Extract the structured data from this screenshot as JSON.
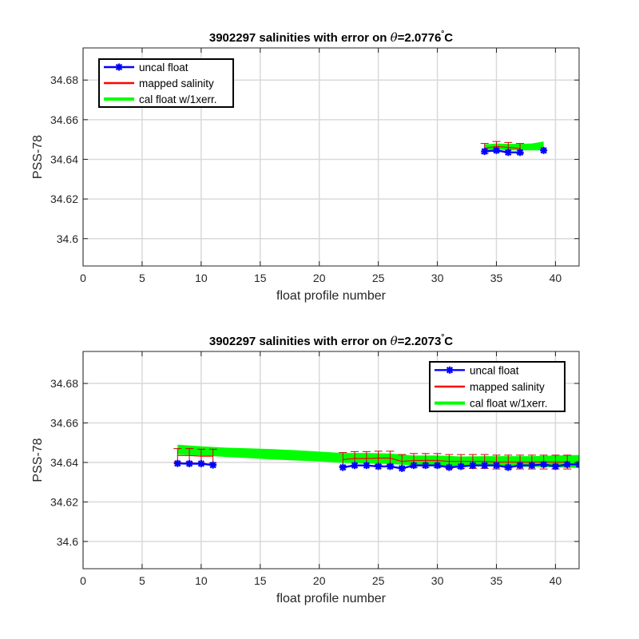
{
  "chart_data": [
    {
      "type": "line",
      "title_prefix": "3902297 salinities with error on ",
      "title_theta": "θ",
      "title_value": "=2.0776",
      "title_degree": "°",
      "title_unit": "C",
      "xlabel": "float profile number",
      "ylabel": "PSS-78",
      "xlim": [
        0,
        42
      ],
      "ylim": [
        34.5862,
        34.6962
      ],
      "xticks": [
        0,
        5,
        10,
        15,
        20,
        25,
        30,
        35,
        40
      ],
      "xtick_labels": [
        "0",
        "5",
        "10",
        "15",
        "20",
        "25",
        "30",
        "35",
        "40"
      ],
      "yticks": [
        34.6,
        34.62,
        34.64,
        34.66,
        34.68
      ],
      "ytick_labels": [
        "34.6",
        "34.62",
        "34.64",
        "34.66",
        "34.68"
      ],
      "grid": true,
      "legend_position": "top-left",
      "legend": [
        "uncal float",
        "mapped salinity",
        "cal float w/1xerr."
      ],
      "colors": {
        "uncal": "#0000ff",
        "mapped": "#ff0000",
        "cal": "#00ff00",
        "errbar": "#cc0000"
      },
      "series": [
        {
          "name": "uncal float",
          "x": [
            34,
            35,
            36,
            37
          ],
          "y": [
            34.644,
            34.6445,
            34.6435,
            34.6435
          ]
        },
        {
          "name": "uncal float",
          "x": [
            39
          ],
          "y": [
            34.6445
          ]
        },
        {
          "name": "mapped salinity",
          "x": [
            34,
            35,
            36,
            37
          ],
          "y": [
            34.6455,
            34.6465,
            34.646,
            34.6455
          ],
          "err": [
            0.0025,
            0.0025,
            0.0025,
            0.0025
          ]
        },
        {
          "name": "cal float w/1xerr.",
          "x": [
            34,
            35,
            36,
            37,
            38,
            39
          ],
          "upper": [
            34.6475,
            34.648,
            34.6478,
            34.6478,
            34.648,
            34.649
          ],
          "lower": [
            34.6445,
            34.645,
            34.6445,
            34.6445,
            34.6445,
            34.6445
          ]
        }
      ]
    },
    {
      "type": "line",
      "title_prefix": "3902297 salinities with error on ",
      "title_theta": "θ",
      "title_value": "=2.2073",
      "title_degree": "°",
      "title_unit": "C",
      "xlabel": "float profile number",
      "ylabel": "PSS-78",
      "xlim": [
        0,
        42
      ],
      "ylim": [
        34.5862,
        34.6962
      ],
      "xticks": [
        0,
        5,
        10,
        15,
        20,
        25,
        30,
        35,
        40
      ],
      "xtick_labels": [
        "0",
        "5",
        "10",
        "15",
        "20",
        "25",
        "30",
        "35",
        "40"
      ],
      "yticks": [
        34.6,
        34.62,
        34.64,
        34.66,
        34.68
      ],
      "ytick_labels": [
        "34.6",
        "34.62",
        "34.64",
        "34.66",
        "34.68"
      ],
      "grid": true,
      "legend_position": "top-right",
      "legend": [
        "uncal float",
        "mapped salinity",
        "cal float w/1xerr."
      ],
      "colors": {
        "uncal": "#0000ff",
        "mapped": "#ff0000",
        "cal": "#00ff00",
        "errbar": "#cc0000"
      },
      "series": [
        {
          "name": "uncal float",
          "x": [
            8,
            9,
            10,
            11
          ],
          "y": [
            34.6395,
            34.6394,
            34.6394,
            34.6387
          ]
        },
        {
          "name": "uncal float",
          "x": [
            22,
            23,
            24,
            25,
            26,
            27,
            28,
            29,
            30,
            31,
            32,
            33,
            34,
            35,
            36,
            37,
            38,
            39,
            40,
            41,
            42
          ],
          "y": [
            34.6375,
            34.6385,
            34.6385,
            34.638,
            34.638,
            34.637,
            34.6385,
            34.6385,
            34.6385,
            34.6375,
            34.638,
            34.6385,
            34.6385,
            34.6385,
            34.6375,
            34.6385,
            34.6385,
            34.639,
            34.638,
            34.639,
            34.639
          ]
        },
        {
          "name": "mapped salinity",
          "x": [
            8,
            9,
            10,
            11
          ],
          "y": [
            34.6435,
            34.6435,
            34.6432,
            34.6432
          ],
          "err": [
            0.0035,
            0.0035,
            0.0035,
            0.0035
          ]
        },
        {
          "name": "mapped salinity",
          "x": [
            22,
            23,
            24,
            25,
            26,
            27,
            28,
            29,
            30,
            31,
            32,
            33,
            34,
            35,
            36,
            37,
            38,
            39,
            40,
            41
          ],
          "y": [
            34.6415,
            34.642,
            34.642,
            34.6422,
            34.6422,
            34.6405,
            34.641,
            34.641,
            34.641,
            34.6405,
            34.6405,
            34.6405,
            34.6405,
            34.6402,
            34.6402,
            34.6402,
            34.6402,
            34.6402,
            34.6402,
            34.6402
          ],
          "err": [
            0.0035,
            0.0035,
            0.0035,
            0.0035,
            0.0035,
            0.0035,
            0.0035,
            0.0035,
            0.0035,
            0.0035,
            0.0035,
            0.0035,
            0.0035,
            0.0035,
            0.0035,
            0.0035,
            0.0035,
            0.0035,
            0.0035,
            0.0035
          ]
        },
        {
          "name": "cal float w/1xerr.",
          "x": [
            8,
            10,
            12,
            14,
            16,
            18,
            20,
            22,
            24,
            26,
            28,
            30,
            32,
            34,
            36,
            38,
            40,
            42
          ],
          "upper": [
            34.649,
            34.6482,
            34.6475,
            34.6472,
            34.6468,
            34.6462,
            34.6455,
            34.6448,
            34.6448,
            34.6445,
            34.6435,
            34.6435,
            34.643,
            34.6432,
            34.6432,
            34.6432,
            34.6435,
            34.6438
          ],
          "lower": [
            34.644,
            34.6435,
            34.6428,
            34.6422,
            34.6415,
            34.641,
            34.6405,
            34.6398,
            34.6395,
            34.6392,
            34.6385,
            34.6385,
            34.638,
            34.638,
            34.6378,
            34.6378,
            34.6375,
            34.6372
          ]
        }
      ]
    }
  ]
}
